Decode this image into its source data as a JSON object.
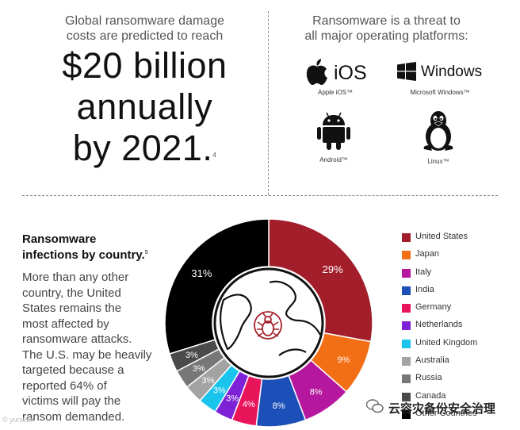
{
  "damage": {
    "lead_line1": "Global ransomware damage",
    "lead_line2": "costs are predicted to reach",
    "big_line1": "$20 billion",
    "big_line2": "annually",
    "big_line3": "by 2021.",
    "footnote": "4"
  },
  "platforms": {
    "lead_line1": "Ransomware is a threat to",
    "lead_line2": "all major operating platforms:",
    "ios_wordmark": "iOS",
    "windows_wordmark": "Windows",
    "ios_caption": "Apple iOS™",
    "windows_caption": "Microsoft Windows™",
    "android_caption": "Android™",
    "linux_caption": "Linux™",
    "icons": [
      "apple-icon",
      "windows-icon",
      "android-icon",
      "linux-tux-icon"
    ]
  },
  "infections": {
    "title_line1": "Ransomware",
    "title_line2": "infections by country.",
    "footnote": "5",
    "body_lines": [
      "More than any other",
      "country, the United",
      "States remains the",
      "most affected by",
      "ransomware attacks.",
      "The U.S. may be heavily",
      "targeted because a",
      "reported 64% of",
      "victims will pay the",
      "ransom demanded."
    ]
  },
  "chart_data": {
    "type": "pie",
    "variant": "donut",
    "center_icon": "globe-with-bug-icon",
    "series": [
      {
        "name": "United States",
        "value": 29,
        "label": "29%",
        "color": "#a31e2b"
      },
      {
        "name": "Japan",
        "value": 9,
        "label": "9%",
        "color": "#f26f16"
      },
      {
        "name": "Italy",
        "value": 8,
        "label": "8%",
        "color": "#b5179e"
      },
      {
        "name": "India",
        "value": 8,
        "label": "8%",
        "color": "#1d4fb8"
      },
      {
        "name": "Germany",
        "value": 4,
        "label": "4%",
        "color": "#e8155a"
      },
      {
        "name": "Netherlands",
        "value": 3,
        "label": "3%",
        "color": "#7d22d6"
      },
      {
        "name": "United Kingdom",
        "value": 3,
        "label": "3%",
        "color": "#1bc4ec"
      },
      {
        "name": "Australia",
        "value": 3,
        "label": "3%",
        "color": "#a3a3a3"
      },
      {
        "name": "Russia",
        "value": 3,
        "label": "3%",
        "color": "#777777"
      },
      {
        "name": "Canada",
        "value": 3,
        "label": "3%",
        "color": "#4a4a4a"
      },
      {
        "name": "Other Countries",
        "value": 31,
        "label": "31%",
        "color": "#000000"
      }
    ],
    "legend_position": "right"
  },
  "watermark": {
    "text": "云容灾备份安全治理",
    "left_text": "© yunwen"
  }
}
